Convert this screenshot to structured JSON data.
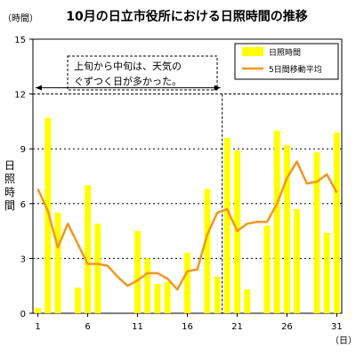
{
  "chart_data": {
    "type": "bar",
    "title": "10月の日立市役所における日照時間の推移",
    "y_unit": "（時間）",
    "x_unit": "（日）",
    "ylabel": "日照時間",
    "ylim": [
      0,
      15
    ],
    "yticks": [
      0,
      3,
      6,
      9,
      12,
      15
    ],
    "xticks": [
      1,
      6,
      11,
      16,
      21,
      26,
      31
    ],
    "categories": [
      1,
      2,
      3,
      4,
      5,
      6,
      7,
      8,
      9,
      10,
      11,
      12,
      13,
      14,
      15,
      16,
      17,
      18,
      19,
      20,
      21,
      22,
      23,
      24,
      25,
      26,
      27,
      28,
      29,
      30,
      31
    ],
    "series": [
      {
        "name": "日照時間",
        "type": "bar",
        "color": "#ffff00",
        "values": [
          0.3,
          10.7,
          5.5,
          0,
          1.4,
          7.0,
          4.9,
          0,
          0,
          0,
          4.5,
          3.0,
          1.6,
          1.7,
          0,
          3.3,
          0,
          6.8,
          2.0,
          9.6,
          8.9,
          1.3,
          0,
          4.8,
          10.0,
          9.2,
          5.7,
          0,
          8.8,
          4.4,
          9.9
        ]
      },
      {
        "name": "5日間移動平均",
        "type": "line",
        "color": "#f4961e",
        "values": [
          6.8,
          5.6,
          3.6,
          4.9,
          3.8,
          2.7,
          2.7,
          2.6,
          2.0,
          1.5,
          1.8,
          2.2,
          2.2,
          1.9,
          1.3,
          2.3,
          2.4,
          4.3,
          5.5,
          5.7,
          4.5,
          4.9,
          5.0,
          5.0,
          6.0,
          7.4,
          8.3,
          7.1,
          7.2,
          7.6,
          6.6
        ]
      }
    ],
    "reference_line": {
      "value": 12,
      "style": "dashed"
    },
    "vertical_marker": {
      "x": 19,
      "style": "dashed"
    },
    "annotation": {
      "lines": [
        "上旬から中旬は、天気の",
        "ぐずつく日が多かった。"
      ],
      "arrow_from": 1,
      "arrow_to": 19
    },
    "legend": {
      "placement": "top-right"
    },
    "grid": "dashed horizontal"
  }
}
